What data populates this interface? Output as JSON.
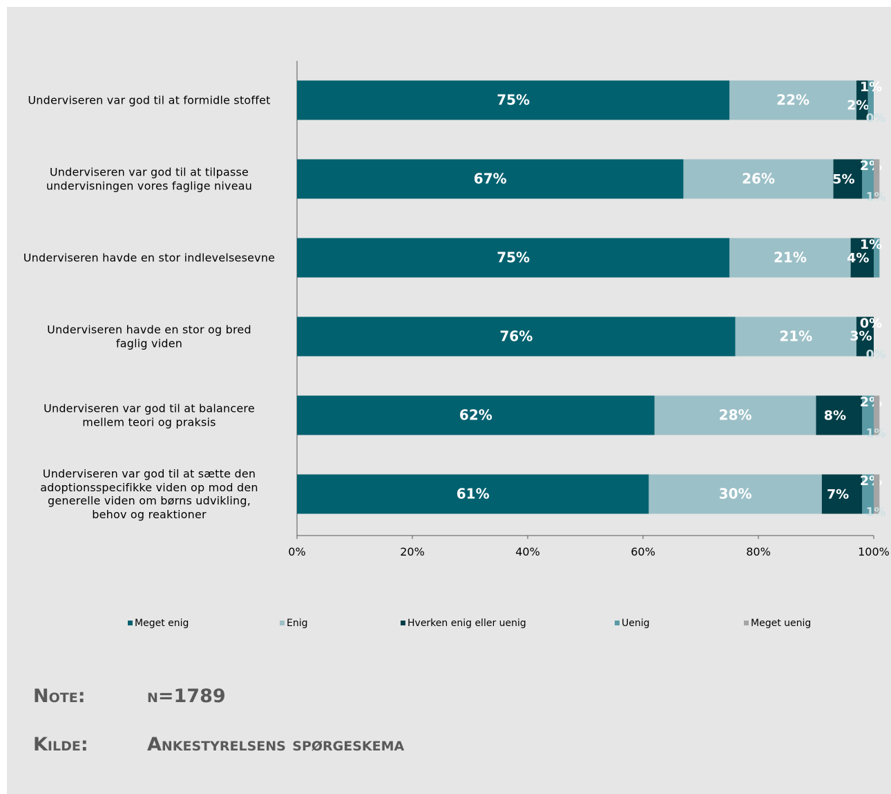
{
  "chart_data": {
    "type": "stacked_barh",
    "categories": [
      "Underviseren var god til at formidle stoffet",
      "Underviseren var god til at tilpasse\nundervisningen vores faglige niveau",
      "Underviseren havde en stor indlevelsesevne",
      "Underviseren havde en stor og bred\nfaglig viden",
      "Underviseren var god til at balancere\nmellem teori og praksis",
      "Underviseren var god til at sætte den\nadoptionsspecifikke viden op mod den\ngenerelle viden om børns udvikling,\nbehov og reaktioner"
    ],
    "series": [
      {
        "name": "Meget enig",
        "color": "#02616f",
        "values": [
          75,
          67,
          75,
          76,
          62,
          61
        ],
        "value_labels": [
          "75%",
          "67%",
          "75%",
          "76%",
          "62%",
          "61%"
        ]
      },
      {
        "name": "Enig",
        "color": "#9cc0c7",
        "values": [
          22,
          26,
          21,
          21,
          28,
          30
        ],
        "value_labels": [
          "22%",
          "26%",
          "21%",
          "21%",
          "28%",
          "30%"
        ]
      },
      {
        "name": "Hverken enig eller uenig",
        "color": "#023e47",
        "values": [
          2,
          5,
          4,
          3,
          8,
          7
        ],
        "value_labels": [
          "2%",
          "5%",
          "4%",
          "3%",
          "8%",
          "7%"
        ]
      },
      {
        "name": "Uenig",
        "color": "#5a9aa5",
        "values": [
          1,
          2,
          1,
          0,
          2,
          2
        ],
        "value_labels": [
          "1%",
          "2%",
          "1%",
          "0%",
          "2%",
          "2%"
        ]
      },
      {
        "name": "Meget uenig",
        "color": "#a5a5a5",
        "values": [
          0,
          1,
          null,
          0,
          1,
          1
        ],
        "value_labels": [
          "0%",
          "1%",
          null,
          "0%",
          "1%",
          "1%"
        ]
      }
    ],
    "xlim": [
      0,
      100
    ],
    "xticks": [
      {
        "value": 0,
        "label": "0%"
      },
      {
        "value": 20,
        "label": "20%"
      },
      {
        "value": 40,
        "label": "40%"
      },
      {
        "value": 60,
        "label": "60%"
      },
      {
        "value": 80,
        "label": "80%"
      },
      {
        "value": 100,
        "label": "100%"
      }
    ],
    "legend": "bottom"
  },
  "notes": {
    "note_label": "Note:",
    "note": "n=1789",
    "source_label": "Kilde:",
    "source": "Ankestyrelsens spørgeskema"
  }
}
